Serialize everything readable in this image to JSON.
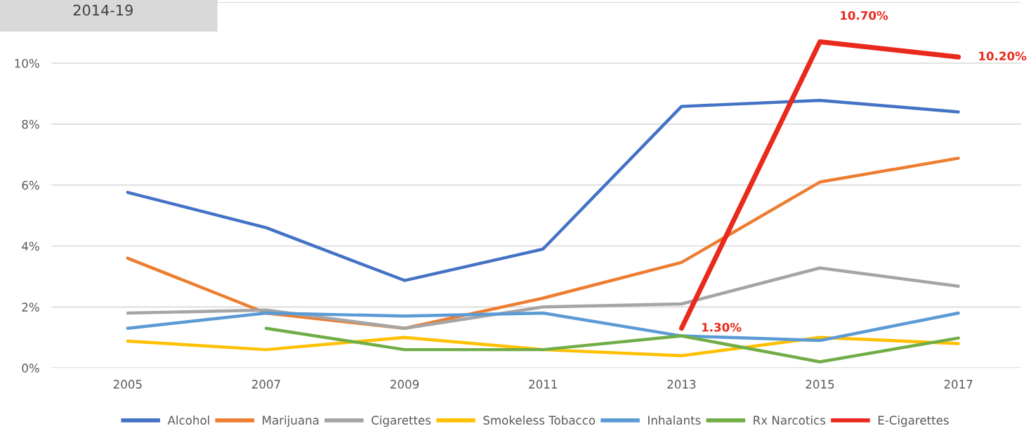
{
  "chart_data": {
    "type": "line",
    "annotations": [
      "2014-19"
    ],
    "categories": [
      "2005",
      "2007",
      "2009",
      "2011",
      "2013",
      "2015",
      "2017"
    ],
    "ylim": [
      0,
      12
    ],
    "yticks": [
      {
        "value": 0,
        "label": "0%"
      },
      {
        "value": 2,
        "label": "2%"
      },
      {
        "value": 4,
        "label": "4%"
      },
      {
        "value": 6,
        "label": "6%"
      },
      {
        "value": 8,
        "label": "8%"
      },
      {
        "value": 10,
        "label": "10%"
      },
      {
        "value": 12,
        "label": null
      }
    ],
    "grid": "y",
    "legend": "bottom",
    "marker": "none",
    "line_style": "solid",
    "series": [
      {
        "name": "Alcohol",
        "color": "#4472c4",
        "values": [
          5.76,
          4.6,
          2.87,
          3.9,
          8.58,
          8.78,
          8.4
        ]
      },
      {
        "name": "Marijuana",
        "color": "#ed7d31",
        "values": [
          3.6,
          1.8,
          1.3,
          2.29,
          3.46,
          6.1,
          6.88
        ]
      },
      {
        "name": "Cigarettes",
        "color": "#a5a5a5",
        "values": [
          1.8,
          1.9,
          1.3,
          2.0,
          2.1,
          3.28,
          2.68
        ]
      },
      {
        "name": "Smokeless Tobacco",
        "color": "#ffc000",
        "values": [
          0.88,
          0.6,
          1.0,
          0.6,
          0.4,
          1.0,
          0.8
        ]
      },
      {
        "name": "Inhalants",
        "color": "#5b9bd5",
        "values": [
          1.3,
          1.8,
          1.7,
          1.8,
          1.05,
          0.9,
          1.8
        ]
      },
      {
        "name": "Rx Narcotics",
        "color": "#70ad47",
        "values": [
          null,
          1.3,
          0.6,
          0.6,
          1.05,
          0.2,
          0.98
        ]
      },
      {
        "name": "E-Cigarettes",
        "color": "#e8291c",
        "values": [
          null,
          null,
          null,
          null,
          1.3,
          10.7,
          10.2
        ],
        "value_labels": [
          null,
          null,
          null,
          null,
          "1.30%",
          "10.70%",
          "10.20%"
        ]
      }
    ]
  }
}
